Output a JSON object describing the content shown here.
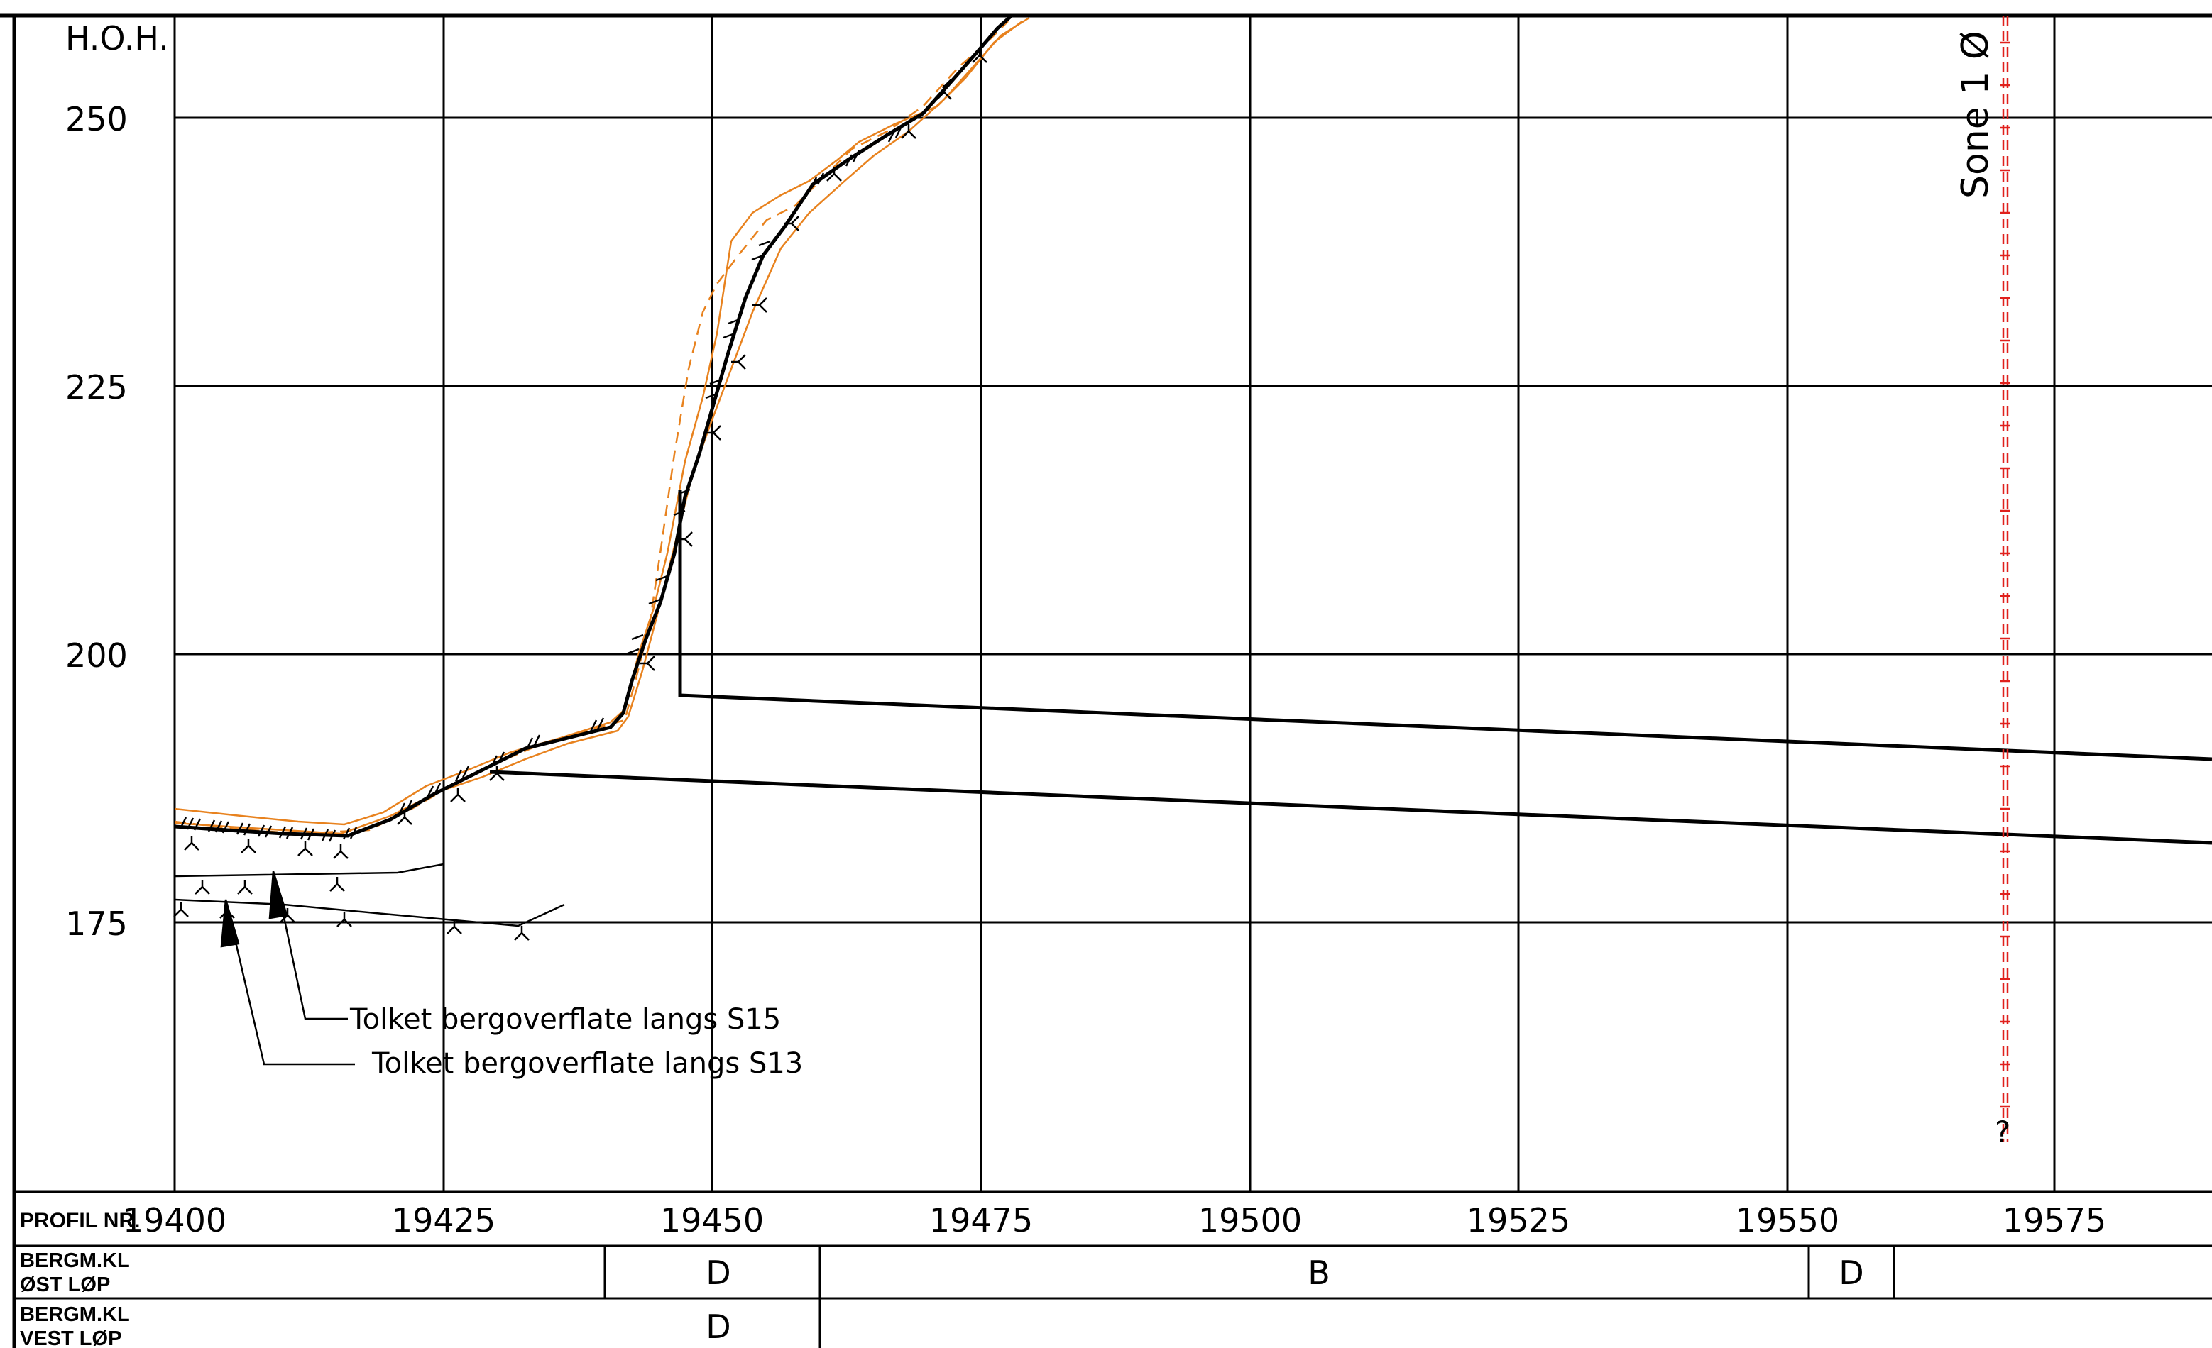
{
  "colors": {
    "line": "#000000",
    "terrain_orange": "#e8821e",
    "zone_red": "#e0201c",
    "background": "#ffffff"
  },
  "axis": {
    "y_title": "H.O.H.",
    "y_ticks": [
      {
        "value": 250,
        "label": "250"
      },
      {
        "value": 225,
        "label": "225"
      },
      {
        "value": 200,
        "label": "200"
      },
      {
        "value": 175,
        "label": "175"
      }
    ],
    "x_ticks": [
      {
        "value": 19400,
        "label": "19400"
      },
      {
        "value": 19425,
        "label": "19425"
      },
      {
        "value": 19450,
        "label": "19450"
      },
      {
        "value": 19475,
        "label": "19475"
      },
      {
        "value": 19500,
        "label": "19500"
      },
      {
        "value": 19525,
        "label": "19525"
      },
      {
        "value": 19550,
        "label": "19550"
      },
      {
        "value": 19575,
        "label": "19575"
      }
    ]
  },
  "zone_marker": {
    "label": "Sone 1 Ø",
    "uncertainty": "?"
  },
  "annotations": [
    {
      "text": "Tolket bergoverflate langs S15"
    },
    {
      "text": "Tolket bergoverflate langs S13"
    }
  ],
  "table": {
    "profile_label": "PROFIL NR.",
    "rows": [
      {
        "label_line1": "BERGM.KL",
        "label_line2": "ØST LØP",
        "classes": [
          "D",
          "B",
          "D"
        ]
      },
      {
        "label_line1": "BERGM.KL",
        "label_line2": "VEST LØP",
        "classes": [
          "D"
        ]
      }
    ]
  }
}
